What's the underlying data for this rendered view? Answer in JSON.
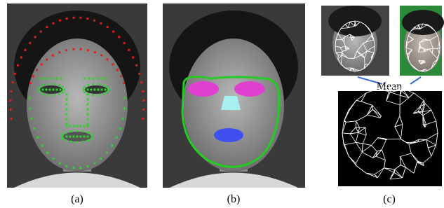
{
  "panels": [
    {
      "label": "(a)"
    },
    {
      "label": "(b)"
    },
    {
      "label": "(c)",
      "center_text": "Mean"
    }
  ]
}
